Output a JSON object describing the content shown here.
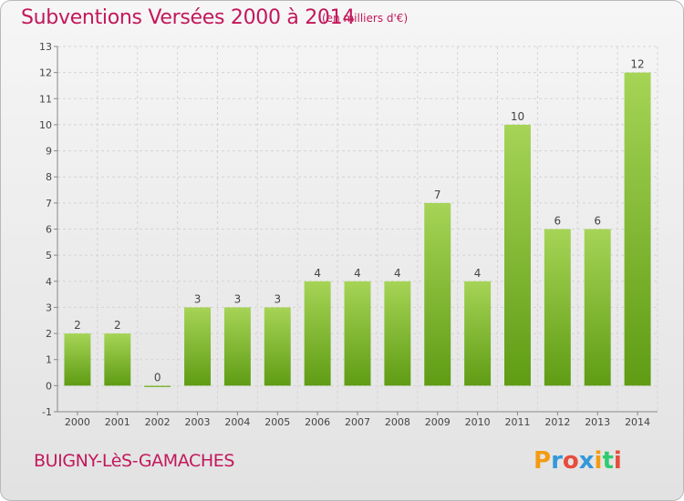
{
  "title": "Subventions Versées 2000 à 2014",
  "subtitle": "(en milliers d'€)",
  "footer_label": "BUIGNY-LèS-GAMACHES",
  "logo": {
    "letters": [
      "P",
      "r",
      "o",
      "x",
      "i",
      "t",
      "i"
    ],
    "colors": [
      "#f39c12",
      "#3498db",
      "#e74c3c",
      "#3498db",
      "#f39c12",
      "#2ecc71",
      "#e74c3c"
    ]
  },
  "colors": {
    "bar_top": "#a6d456",
    "bar_bottom": "#5f9c14",
    "accent": "#c2185b",
    "grid": "#d4d4d4"
  },
  "chart_data": {
    "type": "bar",
    "categories": [
      "2000",
      "2001",
      "2002",
      "2003",
      "2004",
      "2005",
      "2006",
      "2007",
      "2008",
      "2009",
      "2010",
      "2011",
      "2012",
      "2013",
      "2014"
    ],
    "values": [
      2,
      2,
      0,
      3,
      3,
      3,
      4,
      4,
      4,
      7,
      4,
      10,
      6,
      6,
      12
    ],
    "data_labels": [
      "2",
      "2",
      "0",
      "3",
      "3",
      "3",
      "4",
      "4",
      "4",
      "7",
      "4",
      "10",
      "6",
      "6",
      "12"
    ],
    "ylim": [
      -1,
      13
    ],
    "yticks": [
      -1,
      0,
      1,
      2,
      3,
      4,
      5,
      6,
      7,
      8,
      9,
      10,
      11,
      12,
      13
    ],
    "grid": true,
    "legend": "none"
  }
}
